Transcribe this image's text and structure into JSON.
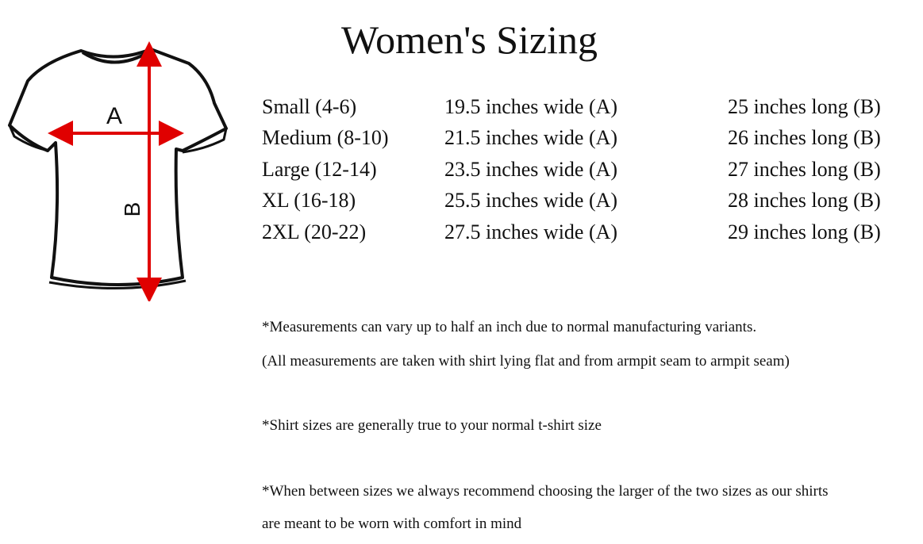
{
  "header": {
    "title": "Women's Sizing"
  },
  "diagram": {
    "label_a": "A",
    "label_b": "B"
  },
  "table": {
    "rows": [
      [
        "Small (4-6)",
        "19.5 inches wide (A)",
        "25 inches long (B)"
      ],
      [
        "Medium (8-10)",
        "21.5 inches wide (A)",
        "26 inches long (B)"
      ],
      [
        "Large (12-14)",
        "23.5 inches wide (A)",
        "27 inches long (B)"
      ],
      [
        "XL (16-18)",
        "25.5 inches wide (A)",
        "28 inches long (B)"
      ],
      [
        "2XL (20-22)",
        "27.5 inches wide (A)",
        "29 inches long (B)"
      ]
    ]
  },
  "notes": [
    "*Measurements can vary up to half an inch due to normal manufacturing variants.",
    "(All measurements are taken with shirt lying flat and from armpit seam to armpit seam)",
    "*Shirt sizes are generally true to your normal t-shirt size",
    "*When between sizes we always recommend choosing the larger of the two sizes as our shirts",
    "are meant to be worn with comfort in mind"
  ]
}
